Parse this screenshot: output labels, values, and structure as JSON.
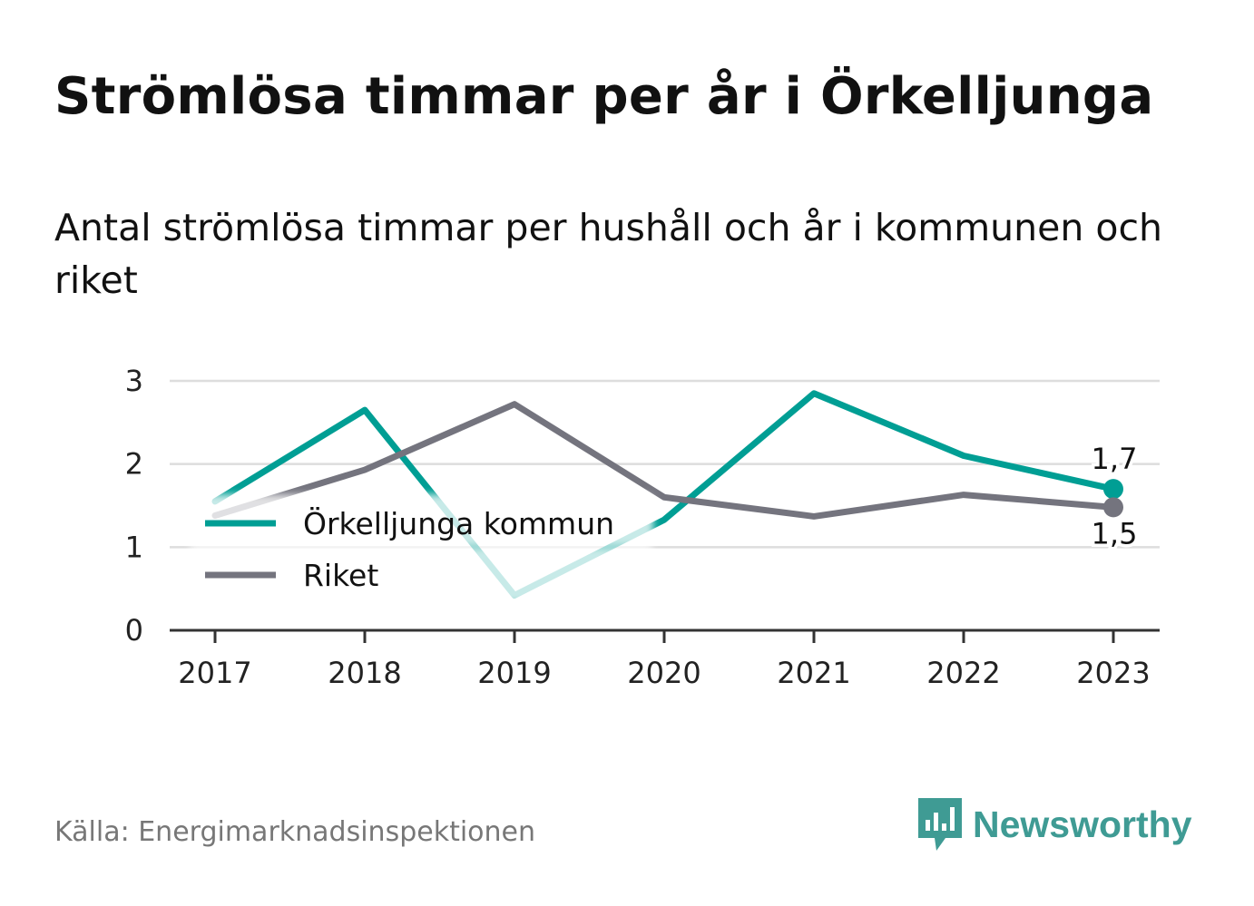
{
  "header": {
    "title": "Strömlösa timmar per år i Örkelljunga",
    "subtitle": "Antal strömlösa timmar per hushåll och år i kommunen och riket"
  },
  "footer": {
    "source": "Källa: Energimarknadsinspektionen",
    "brand": "Newsworthy",
    "brand_icon": "newsworthy-logo-icon",
    "brand_color": "#3f9b94"
  },
  "chart_data": {
    "type": "line",
    "title": "Strömlösa timmar per år i Örkelljunga",
    "x": [
      "2017",
      "2018",
      "2019",
      "2020",
      "2021",
      "2022",
      "2023"
    ],
    "yticks": [
      "0",
      "1",
      "2",
      "3"
    ],
    "ylim": [
      0,
      3
    ],
    "grid": true,
    "legend_position": "left",
    "series": [
      {
        "name": "Örkelljunga kommun",
        "values": [
          1.55,
          2.65,
          0.42,
          1.33,
          2.85,
          2.1,
          1.7
        ],
        "color": "#009e94",
        "end_label": "1,7"
      },
      {
        "name": "Riket",
        "values": [
          1.38,
          1.93,
          2.72,
          1.6,
          1.37,
          1.63,
          1.48
        ],
        "color": "#74747e",
        "end_label": "1,5"
      }
    ]
  }
}
